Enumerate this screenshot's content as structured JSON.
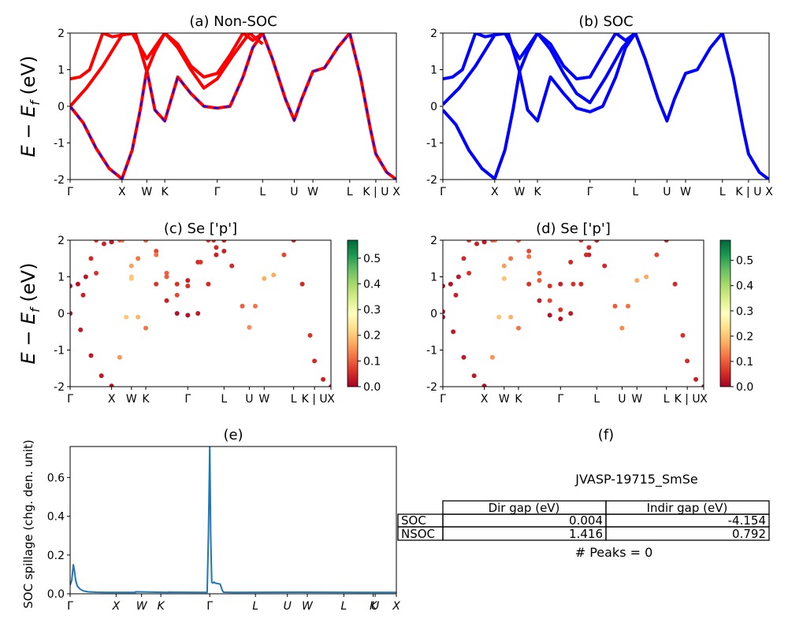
{
  "figure": {
    "ylabel_text": "E − E",
    "ylabel_sub": "f",
    "ylabel_unit": " (eV)"
  },
  "chart_data": [
    {
      "id": "a",
      "type": "line",
      "title": "(a) Non-SOC",
      "ylim": [
        -2,
        2
      ],
      "yticks": [
        "-2",
        "-1",
        "0",
        "1",
        "2"
      ],
      "kpath": [
        "Γ",
        "X",
        "W",
        "K",
        "Γ",
        "L",
        "U",
        "W",
        "L",
        "K | U",
        "X"
      ],
      "kpos": [
        0,
        0.159,
        0.235,
        0.29,
        0.451,
        0.59,
        0.687,
        0.744,
        0.857,
        0.937,
        1.0
      ],
      "series": [
        {
          "name": "",
          "color": "#ff0000",
          "dashed_overlay": "#0000ff",
          "x": [
            0,
            0.04,
            0.08,
            0.12,
            0.159,
            0.19,
            0.215,
            0.235,
            0.26,
            0.29,
            0.33,
            0.37,
            0.41,
            0.451,
            0.49,
            0.53,
            0.56,
            0.59,
            0.62,
            0.66,
            0.687,
            0.71,
            0.744,
            0.78,
            0.82,
            0.857,
            0.89,
            0.92,
            0.937,
            0.97,
            1.0
          ],
          "y": [
            0,
            -0.45,
            -1.15,
            -1.7,
            -1.98,
            -1.2,
            -0.1,
            1.0,
            -0.1,
            -0.4,
            0.8,
            0.35,
            0.0,
            -0.05,
            0.0,
            0.8,
            1.6,
            2.0,
            1.3,
            0.2,
            -0.38,
            0.2,
            0.95,
            1.05,
            1.6,
            2.0,
            0.8,
            -0.6,
            -1.3,
            -1.8,
            -2.0
          ]
        },
        {
          "name": "",
          "color": "#ff0000",
          "x": [
            0,
            0.03,
            0.06,
            0.08,
            0.1,
            0.13,
            0.159,
            0.2,
            0.235,
            0.26,
            0.29,
            0.33,
            0.37,
            0.41,
            0.451,
            0.49,
            0.53,
            0.56,
            0.59
          ],
          "y": [
            0.75,
            0.8,
            1.0,
            1.5,
            2.0,
            1.9,
            1.95,
            2.0,
            0.95,
            1.5,
            2.0,
            1.7,
            1.1,
            0.8,
            0.9,
            1.4,
            2.0,
            1.8,
            2.0
          ]
        },
        {
          "name": "",
          "color": "#ff0000",
          "x": [
            0,
            0.05,
            0.1,
            0.159,
            0.19,
            0.235,
            0.29,
            0.33,
            0.37,
            0.41,
            0.451,
            0.5,
            0.55,
            0.59
          ],
          "y": [
            0.0,
            0.5,
            1.1,
            1.95,
            2.0,
            1.3,
            2.0,
            1.6,
            1.0,
            0.5,
            0.75,
            1.4,
            2.0,
            1.7
          ]
        }
      ]
    },
    {
      "id": "b",
      "type": "line",
      "title": "(b) SOC",
      "ylim": [
        -2,
        2
      ],
      "yticks": [
        "-2",
        "-1",
        "0",
        "1",
        "2"
      ],
      "kpath": [
        "Γ",
        "X",
        "W",
        "K",
        "Γ",
        "L",
        "U",
        "W",
        "L",
        "K | U",
        "X"
      ],
      "kpos": [
        0,
        0.159,
        0.235,
        0.29,
        0.451,
        0.59,
        0.687,
        0.744,
        0.857,
        0.937,
        1.0
      ],
      "series": [
        {
          "name": "",
          "color": "#0000ff",
          "x": [
            0,
            0.04,
            0.08,
            0.12,
            0.159,
            0.19,
            0.215,
            0.235,
            0.26,
            0.29,
            0.33,
            0.37,
            0.41,
            0.451,
            0.49,
            0.53,
            0.56,
            0.59,
            0.62,
            0.66,
            0.687,
            0.71,
            0.744,
            0.78,
            0.82,
            0.857,
            0.89,
            0.92,
            0.937,
            0.97,
            1.0
          ],
          "y": [
            -0.1,
            -0.5,
            -1.2,
            -1.7,
            -1.98,
            -1.2,
            -0.1,
            0.95,
            -0.1,
            -0.4,
            0.8,
            0.35,
            -0.05,
            -0.15,
            0.0,
            0.8,
            1.6,
            2.0,
            1.3,
            0.2,
            -0.4,
            0.2,
            0.9,
            1.0,
            1.6,
            2.0,
            0.8,
            -0.6,
            -1.3,
            -1.8,
            -2.0
          ]
        },
        {
          "name": "",
          "color": "#0000ff",
          "x": [
            0,
            0.03,
            0.06,
            0.08,
            0.1,
            0.13,
            0.159,
            0.2,
            0.235,
            0.26,
            0.29,
            0.33,
            0.37,
            0.41,
            0.451,
            0.49,
            0.53,
            0.56,
            0.59
          ],
          "y": [
            0.75,
            0.8,
            1.0,
            1.5,
            2.0,
            1.9,
            1.95,
            2.0,
            0.95,
            1.5,
            2.0,
            1.7,
            1.1,
            0.75,
            0.8,
            1.4,
            2.0,
            1.8,
            2.0
          ]
        },
        {
          "name": "",
          "color": "#0000ff",
          "x": [
            0,
            0.05,
            0.1,
            0.159,
            0.19,
            0.235,
            0.29,
            0.33,
            0.37,
            0.41,
            0.451,
            0.5,
            0.55,
            0.59
          ],
          "y": [
            0.05,
            0.5,
            1.1,
            1.95,
            2.0,
            1.3,
            2.0,
            1.55,
            0.9,
            0.35,
            0.1,
            0.8,
            1.6,
            2.0
          ]
        }
      ]
    },
    {
      "id": "c",
      "type": "scatter",
      "title": "(c)  Se ['p']",
      "ylim": [
        -2,
        2
      ],
      "yticks": [
        "-2",
        "-1",
        "0",
        "1",
        "2"
      ],
      "kpath": [
        "Γ",
        "X",
        "W",
        "K",
        "Γ",
        "L",
        "U",
        "W",
        "L",
        "K | U",
        "X"
      ],
      "kpos": [
        0,
        0.159,
        0.235,
        0.29,
        0.451,
        0.59,
        0.687,
        0.744,
        0.857,
        0.937,
        1.0
      ],
      "colorbar": {
        "cmap": "RdYlGn",
        "range": [
          0.0,
          0.57
        ],
        "ticks": [
          "0.0",
          "0.1",
          "0.2",
          "0.3",
          "0.4",
          "0.5"
        ]
      },
      "series": [
        {
          "name": "",
          "weight": 0.05,
          "x": [
            0,
            0.04,
            0.08,
            0.12,
            0.159,
            0.19,
            0.215,
            0.235,
            0.26,
            0.29,
            0.33,
            0.37,
            0.41,
            0.451,
            0.49,
            0.53,
            0.56,
            0.59,
            0.62,
            0.66,
            0.687,
            0.71,
            0.744,
            0.78,
            0.82,
            0.857,
            0.89,
            0.92,
            0.937,
            0.97,
            1.0
          ],
          "y": [
            0,
            -0.45,
            -1.15,
            -1.7,
            -1.98,
            -1.2,
            -0.1,
            1.0,
            -0.1,
            -0.4,
            0.8,
            0.35,
            0.0,
            -0.05,
            0.0,
            0.8,
            1.6,
            2.0,
            1.3,
            0.2,
            -0.38,
            0.2,
            0.95,
            1.05,
            1.6,
            2.0,
            0.8,
            -0.6,
            -1.3,
            -1.8,
            -2.0
          ],
          "w": [
            0.02,
            0.03,
            0.03,
            0.03,
            0.02,
            0.15,
            0.2,
            0.2,
            0.18,
            0.12,
            0.06,
            0.04,
            0.02,
            0.02,
            0.03,
            0.05,
            0.04,
            0.03,
            0.05,
            0.1,
            0.14,
            0.12,
            0.17,
            0.17,
            0.08,
            0.04,
            0.05,
            0.06,
            0.05,
            0.04,
            0.03
          ]
        },
        {
          "name": "",
          "weight": 0.05,
          "x": [
            0,
            0.03,
            0.06,
            0.08,
            0.1,
            0.13,
            0.159,
            0.2,
            0.235,
            0.26,
            0.29,
            0.33,
            0.37,
            0.41,
            0.451,
            0.49,
            0.53,
            0.56,
            0.59
          ],
          "y": [
            0.75,
            0.8,
            1.0,
            1.5,
            2.0,
            1.9,
            1.95,
            2.0,
            0.95,
            1.5,
            2.0,
            1.7,
            1.1,
            0.8,
            0.9,
            1.4,
            2.0,
            1.8,
            2.0
          ],
          "w": [
            0.02,
            0.02,
            0.03,
            0.05,
            0.06,
            0.04,
            0.02,
            0.12,
            0.2,
            0.12,
            0.06,
            0.08,
            0.1,
            0.06,
            0.04,
            0.05,
            0.06,
            0.05,
            0.04
          ]
        },
        {
          "name": "",
          "weight": 0.05,
          "x": [
            0,
            0.05,
            0.1,
            0.159,
            0.19,
            0.235,
            0.29,
            0.33,
            0.37,
            0.41,
            0.451,
            0.5,
            0.55,
            0.59
          ],
          "y": [
            0.0,
            0.5,
            1.1,
            1.95,
            2.0,
            1.3,
            2.0,
            1.6,
            1.0,
            0.5,
            0.75,
            1.4,
            2.0,
            1.7
          ],
          "w": [
            0.02,
            0.04,
            0.06,
            0.03,
            0.1,
            0.16,
            0.1,
            0.12,
            0.1,
            0.08,
            0.06,
            0.06,
            0.05,
            0.04
          ]
        }
      ]
    },
    {
      "id": "d",
      "type": "scatter",
      "title": "(d) Se ['p']",
      "ylim": [
        -2,
        2
      ],
      "yticks": [
        "-2",
        "-1",
        "0",
        "1",
        "2"
      ],
      "kpath": [
        "Γ",
        "X",
        "W",
        "K",
        "Γ",
        "L",
        "U",
        "W",
        "L",
        "K | U",
        "X"
      ],
      "kpos": [
        0,
        0.159,
        0.235,
        0.29,
        0.451,
        0.59,
        0.687,
        0.744,
        0.857,
        0.937,
        1.0
      ],
      "colorbar": {
        "cmap": "RdYlGn",
        "range": [
          0.0,
          0.58
        ],
        "ticks": [
          "0.0",
          "0.1",
          "0.2",
          "0.3",
          "0.4",
          "0.5"
        ]
      },
      "series": [
        {
          "name": "",
          "x": [
            0,
            0.04,
            0.08,
            0.12,
            0.159,
            0.19,
            0.215,
            0.235,
            0.26,
            0.29,
            0.33,
            0.37,
            0.41,
            0.451,
            0.49,
            0.53,
            0.56,
            0.59,
            0.62,
            0.66,
            0.687,
            0.71,
            0.744,
            0.78,
            0.82,
            0.857,
            0.89,
            0.92,
            0.937,
            0.97,
            1.0
          ],
          "y": [
            -0.1,
            -0.5,
            -1.2,
            -1.7,
            -1.98,
            -1.2,
            -0.1,
            0.95,
            -0.1,
            -0.4,
            0.8,
            0.35,
            -0.05,
            -0.15,
            0.0,
            0.8,
            1.6,
            2.0,
            1.3,
            0.2,
            -0.4,
            0.2,
            0.9,
            1.0,
            1.6,
            2.0,
            0.8,
            -0.6,
            -1.3,
            -1.8,
            -2.0
          ],
          "w": [
            0.02,
            0.03,
            0.03,
            0.03,
            0.02,
            0.15,
            0.2,
            0.2,
            0.18,
            0.12,
            0.06,
            0.04,
            0.02,
            0.02,
            0.03,
            0.05,
            0.04,
            0.03,
            0.05,
            0.1,
            0.14,
            0.12,
            0.17,
            0.17,
            0.08,
            0.04,
            0.05,
            0.06,
            0.05,
            0.04,
            0.03
          ]
        },
        {
          "name": "",
          "x": [
            0,
            0.03,
            0.06,
            0.08,
            0.1,
            0.13,
            0.159,
            0.2,
            0.235,
            0.26,
            0.29,
            0.33,
            0.37,
            0.41,
            0.451,
            0.49,
            0.53,
            0.56,
            0.59
          ],
          "y": [
            0.75,
            0.8,
            1.0,
            1.5,
            2.0,
            1.9,
            1.95,
            2.0,
            0.95,
            1.5,
            2.0,
            1.7,
            1.1,
            0.75,
            0.8,
            1.4,
            2.0,
            1.8,
            2.0
          ],
          "w": [
            0.02,
            0.02,
            0.03,
            0.05,
            0.06,
            0.04,
            0.02,
            0.12,
            0.2,
            0.12,
            0.06,
            0.08,
            0.1,
            0.06,
            0.04,
            0.05,
            0.06,
            0.05,
            0.04
          ]
        },
        {
          "name": "",
          "x": [
            0,
            0.05,
            0.1,
            0.159,
            0.19,
            0.235,
            0.29,
            0.33,
            0.37,
            0.41,
            0.451,
            0.5,
            0.55,
            0.59
          ],
          "y": [
            0.05,
            0.5,
            1.1,
            1.95,
            2.0,
            1.3,
            2.0,
            1.55,
            0.9,
            0.35,
            0.1,
            0.8,
            1.6,
            2.0
          ],
          "w": [
            0.02,
            0.04,
            0.06,
            0.03,
            0.1,
            0.16,
            0.1,
            0.12,
            0.1,
            0.08,
            0.06,
            0.06,
            0.05,
            0.04
          ]
        }
      ]
    },
    {
      "id": "e",
      "type": "line",
      "title": "(e)",
      "ylabel": "SOC spillage (chg. den. unit)",
      "ylim": [
        0,
        0.76
      ],
      "yticks": [
        "0.0",
        "0.2",
        "0.4",
        "0.6"
      ],
      "ytick_values": [
        0,
        0.2,
        0.4,
        0.6
      ],
      "kpath": [
        "Γ",
        "X",
        "W",
        "K",
        "Γ",
        "L",
        "U",
        "W",
        "L",
        "K",
        "U",
        "X"
      ],
      "kpos": [
        0,
        0.141,
        0.219,
        0.278,
        0.428,
        0.568,
        0.666,
        0.727,
        0.839,
        0.929,
        0.935,
        1.0
      ],
      "series": [
        {
          "name": "",
          "color": "#1f77b4",
          "x": [
            0,
            0.005,
            0.01,
            0.013,
            0.017,
            0.022,
            0.03,
            0.04,
            0.055,
            0.08,
            0.12,
            0.2,
            0.2,
            0.3,
            0.3,
            0.42,
            0.424,
            0.428,
            0.431,
            0.434,
            0.437,
            0.441,
            0.445,
            0.46,
            0.466,
            0.47,
            0.5,
            0.7,
            0.9,
            1.0
          ],
          "y": [
            0.045,
            0.07,
            0.15,
            0.12,
            0.07,
            0.04,
            0.025,
            0.015,
            0.01,
            0.008,
            0.007,
            0.007,
            0.01,
            0.007,
            0.008,
            0.007,
            0.3,
            0.76,
            0.3,
            0.06,
            0.055,
            0.06,
            0.055,
            0.05,
            0.02,
            0.008,
            0.007,
            0.008,
            0.007,
            0.007
          ]
        }
      ]
    }
  ],
  "panel_f": {
    "title": "(f)",
    "material": "JVASP-19715_SmSe",
    "columns": [
      "Dir gap (eV)",
      "Indir gap (eV)"
    ],
    "rows": [
      {
        "label": "SOC",
        "dir": "0.004",
        "indir": "-4.154"
      },
      {
        "label": "NSOC",
        "dir": "1.416",
        "indir": "0.792"
      }
    ],
    "peaks": "# Peaks = 0"
  }
}
